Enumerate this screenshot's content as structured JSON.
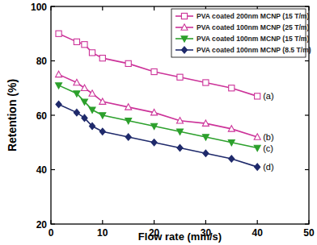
{
  "chart_data": {
    "type": "line",
    "x_label": "Flow rate (mm/s)",
    "y_label": "Retention (%)",
    "x": [
      1.5,
      5,
      6.5,
      8,
      10,
      15,
      20,
      25,
      30,
      35,
      40
    ],
    "series": [
      {
        "name": "PVA coated 200nm MCNP (15 T/m)",
        "color": "#cc3399",
        "marker": "open-square",
        "values": [
          90,
          87,
          86,
          83,
          81,
          79,
          76,
          74,
          72,
          70,
          67
        ]
      },
      {
        "name": "PVA coated 100nm MCNP (25 T/m)",
        "color": "#cc3399",
        "marker": "open-triangle",
        "values": [
          75,
          72,
          70,
          68,
          65,
          63,
          61,
          58,
          57,
          55,
          52
        ]
      },
      {
        "name": "PVA coated 100nm MCNP (15 T/m)",
        "color": "#2ca02c",
        "marker": "triangle-down",
        "values": [
          71,
          68,
          65,
          62,
          60,
          58,
          56,
          54,
          52,
          50,
          48
        ]
      },
      {
        "name": "PVA coated 100nm MCNP (8.5 T/m)",
        "color": "#1f2a6b",
        "marker": "diamond",
        "values": [
          64,
          61,
          59,
          56,
          54,
          52,
          50,
          48,
          46,
          44,
          41
        ]
      }
    ],
    "annotations": [
      "(a)",
      "(b)",
      "(c)",
      "(d)"
    ],
    "xlim": [
      0,
      50
    ],
    "xticks": [
      0,
      10,
      20,
      30,
      40,
      50
    ],
    "ylim": [
      20,
      100
    ],
    "yticks": [
      20,
      40,
      60,
      80,
      100
    ],
    "legend": "upper-right",
    "grid": false
  }
}
